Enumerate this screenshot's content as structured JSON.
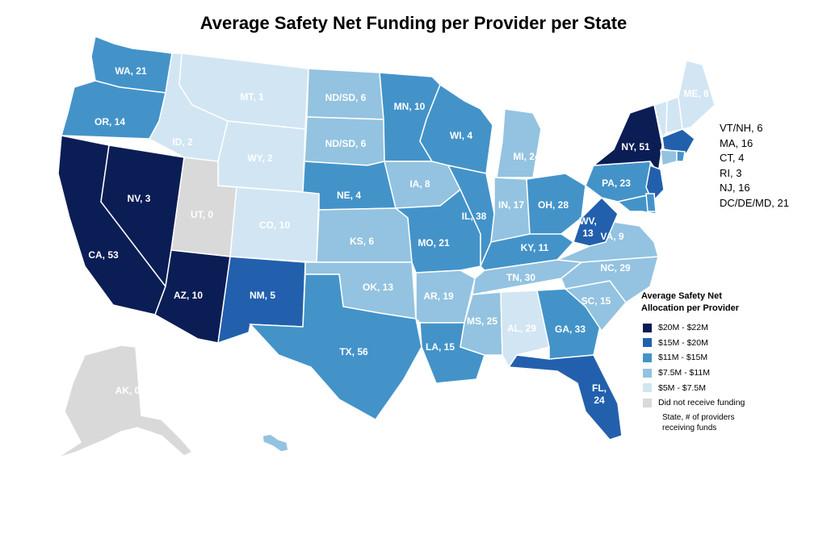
{
  "title": "Average Safety Net Funding per Provider per State",
  "colors": {
    "tier1": "#0b1d55",
    "tier2": "#2260ad",
    "tier3": "#4393c9",
    "tier4": "#93c3e0",
    "tier5": "#d2e5f3",
    "none": "#d9d9d9"
  },
  "legend": {
    "title_line1": "Average Safety Net",
    "title_line2": "Allocation per Provider",
    "items": [
      {
        "label": "$20M - $22M",
        "tier": "tier1"
      },
      {
        "label": "$15M - $20M",
        "tier": "tier2"
      },
      {
        "label": "$11M - $15M",
        "tier": "tier3"
      },
      {
        "label": "$7.5M - $11M",
        "tier": "tier4"
      },
      {
        "label": "$5M - $7.5M",
        "tier": "tier5"
      },
      {
        "label": "Did not receive funding",
        "tier": "none"
      }
    ],
    "note_line1": "State, # of providers",
    "note_line2": "receiving funds"
  },
  "states": {
    "WA": {
      "label": "WA, 21",
      "tier": "tier3"
    },
    "OR": {
      "label": "OR, 14",
      "tier": "tier3"
    },
    "CA": {
      "label": "CA, 53",
      "tier": "tier1"
    },
    "NV": {
      "label": "NV, 3",
      "tier": "tier1"
    },
    "ID": {
      "label": "ID, 2",
      "tier": "tier5"
    },
    "MT": {
      "label": "MT, 1",
      "tier": "tier5"
    },
    "WY": {
      "label": "WY, 2",
      "tier": "tier5"
    },
    "UT": {
      "label": "UT, 0",
      "tier": "none"
    },
    "CO": {
      "label": "CO, 10",
      "tier": "tier5"
    },
    "AZ": {
      "label": "AZ, 10",
      "tier": "tier1"
    },
    "NM": {
      "label": "NM, 5",
      "tier": "tier2"
    },
    "ND": {
      "label": "ND/SD, 6",
      "tier": "tier4"
    },
    "SD": {
      "label": "ND/SD, 6",
      "tier": "tier4"
    },
    "NE": {
      "label": "NE, 4",
      "tier": "tier3"
    },
    "KS": {
      "label": "KS, 6",
      "tier": "tier4"
    },
    "OK": {
      "label": "OK, 13",
      "tier": "tier4"
    },
    "TX": {
      "label": "TX, 56",
      "tier": "tier3"
    },
    "MN": {
      "label": "MN, 10",
      "tier": "tier3"
    },
    "IA": {
      "label": "IA, 8",
      "tier": "tier4"
    },
    "MO": {
      "label": "MO, 21",
      "tier": "tier3"
    },
    "AR": {
      "label": "AR, 19",
      "tier": "tier4"
    },
    "LA": {
      "label": "LA, 15",
      "tier": "tier3"
    },
    "WI": {
      "label": "WI, 4",
      "tier": "tier3"
    },
    "IL": {
      "label": "IL, 38",
      "tier": "tier3"
    },
    "MI": {
      "label": "MI, 24",
      "tier": "tier4"
    },
    "IN": {
      "label": "IN, 17",
      "tier": "tier4"
    },
    "OH": {
      "label": "OH, 28",
      "tier": "tier3"
    },
    "KY": {
      "label": "KY, 11",
      "tier": "tier3"
    },
    "TN": {
      "label": "TN, 30",
      "tier": "tier4"
    },
    "MS": {
      "label": "MS, 25",
      "tier": "tier4"
    },
    "AL": {
      "label": "AL, 29",
      "tier": "tier5"
    },
    "GA": {
      "label": "GA, 33",
      "tier": "tier3"
    },
    "FL": {
      "label": "FL, 24",
      "tier": "tier2"
    },
    "SC": {
      "label": "SC, 15",
      "tier": "tier4"
    },
    "NC": {
      "label": "NC, 29",
      "tier": "tier4"
    },
    "VA": {
      "label": "VA, 9",
      "tier": "tier4"
    },
    "WV": {
      "label": "WV, 13",
      "tier": "tier2"
    },
    "PA": {
      "label": "PA, 23",
      "tier": "tier3"
    },
    "NY": {
      "label": "NY, 51",
      "tier": "tier1"
    },
    "ME": {
      "label": "ME, 8",
      "tier": "tier5"
    },
    "VT": {
      "tier": "tier5"
    },
    "NH": {
      "tier": "tier5"
    },
    "MA": {
      "tier": "tier2"
    },
    "CT": {
      "tier": "tier4"
    },
    "RI": {
      "tier": "tier3"
    },
    "NJ": {
      "tier": "tier2"
    },
    "DE": {
      "tier": "tier3"
    },
    "MD": {
      "tier": "tier3"
    },
    "AK": {
      "label": "AK, 0",
      "tier": "none"
    },
    "HI": {
      "tier": "tier4"
    }
  },
  "small_states": [
    {
      "label": "VT/NH, 6"
    },
    {
      "label": "MA, 16"
    },
    {
      "label": "CT, 4"
    },
    {
      "label": "RI, 3"
    },
    {
      "label": "NJ, 16"
    },
    {
      "label": "DC/DE/MD, 21"
    }
  ]
}
